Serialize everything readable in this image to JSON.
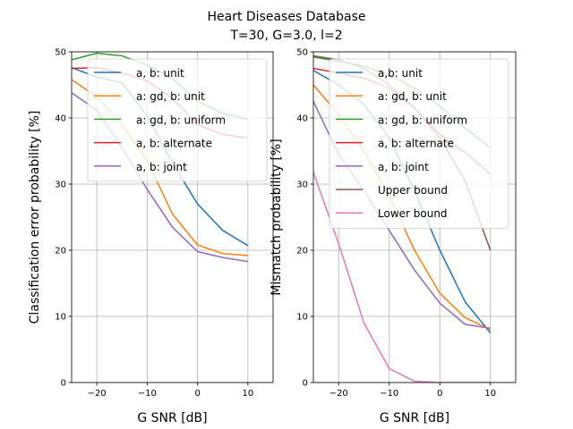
{
  "figure": {
    "suptitle_line1": "Heart Diseases Database",
    "suptitle_line2": "T=30, G=3.0, l=2"
  },
  "colors": {
    "blue": "#1f77b4",
    "orange": "#ff7f0e",
    "green": "#2ca02c",
    "red": "#d62728",
    "purple": "#9467bd",
    "brown": "#8c564b",
    "pink": "#e377c2",
    "grid": "#b0b0b0"
  },
  "chart_data": [
    {
      "type": "line",
      "xlabel": "G SNR [dB]",
      "ylabel": "Classification error probability [%]",
      "xlim": [
        -25,
        15
      ],
      "ylim": [
        0,
        50
      ],
      "xticks": [
        -20,
        -10,
        0,
        10
      ],
      "yticks": [
        0,
        10,
        20,
        30,
        40,
        50
      ],
      "xtick_labels": [
        "−20",
        "−10",
        "0",
        "10"
      ],
      "ytick_labels": [
        "0",
        "10",
        "20",
        "30",
        "40",
        "50"
      ],
      "grid": true,
      "legend_position": "top-right",
      "x": [
        -25,
        -20,
        -15,
        -10,
        -5,
        0,
        5,
        10
      ],
      "series": [
        {
          "name": "a, b: unit",
          "color": "#1f77b4",
          "values": [
            47.6,
            46.2,
            45.3,
            40.3,
            33.2,
            27.0,
            23.0,
            20.7
          ]
        },
        {
          "name": "a: gd, b: unit",
          "color": "#ff7f0e",
          "values": [
            45.8,
            43.2,
            39.0,
            33.5,
            25.5,
            20.8,
            19.5,
            19.2
          ]
        },
        {
          "name": "a: gd, b: uniform",
          "color": "#2ca02c",
          "values": [
            48.8,
            49.8,
            49.4,
            48.0,
            46.0,
            42.5,
            40.7,
            39.8
          ]
        },
        {
          "name": "a, b: alternate",
          "color": "#d62728",
          "values": [
            47.5,
            47.6,
            46.8,
            45.6,
            43.0,
            39.0,
            37.5,
            37.0
          ]
        },
        {
          "name": "a, b: joint",
          "color": "#9467bd",
          "values": [
            43.8,
            41.2,
            35.5,
            29.2,
            23.5,
            19.8,
            18.9,
            18.3
          ]
        }
      ]
    },
    {
      "type": "line",
      "xlabel": "G SNR [dB]",
      "ylabel": "Mismatch probability [%]",
      "xlim": [
        -25,
        15
      ],
      "ylim": [
        0,
        50
      ],
      "xticks": [
        -20,
        -10,
        0,
        10
      ],
      "yticks": [
        0,
        10,
        20,
        30,
        40,
        50
      ],
      "xtick_labels": [
        "−20",
        "−10",
        "0",
        "10"
      ],
      "ytick_labels": [
        "0",
        "10",
        "20",
        "30",
        "40",
        "50"
      ],
      "grid": true,
      "legend_position": "top-right",
      "x": [
        -25,
        -20,
        -15,
        -10,
        -5,
        0,
        5,
        10
      ],
      "series": [
        {
          "name": "a,b: unit",
          "color": "#1f77b4",
          "values": [
            47.2,
            45.0,
            42.0,
            37.0,
            29.0,
            20.0,
            12.2,
            7.5
          ]
        },
        {
          "name": "a: gd, b: unit",
          "color": "#ff7f0e",
          "values": [
            45.0,
            40.5,
            35.0,
            28.2,
            20.0,
            13.5,
            9.8,
            8.0
          ]
        },
        {
          "name": "a: gd, b: uniform",
          "color": "#2ca02c",
          "values": [
            49.2,
            48.6,
            47.8,
            46.5,
            44.5,
            41.8,
            38.5,
            35.5
          ]
        },
        {
          "name": "a, b: alternate",
          "color": "#d62728",
          "values": [
            47.5,
            46.8,
            46.0,
            44.5,
            41.5,
            37.5,
            34.8,
            31.5
          ]
        },
        {
          "name": "a, b: joint",
          "color": "#9467bd",
          "values": [
            42.5,
            34.5,
            29.0,
            23.0,
            17.0,
            12.0,
            8.8,
            8.2
          ]
        },
        {
          "name": "Upper bound",
          "color": "#8c564b",
          "values": [
            49.4,
            48.8,
            47.5,
            45.0,
            41.5,
            37.0,
            30.5,
            20.0
          ]
        },
        {
          "name": "Lower bound",
          "color": "#e377c2",
          "values": [
            31.8,
            21.0,
            9.0,
            2.1,
            0.2,
            0.0,
            0.0,
            0.0
          ]
        }
      ]
    }
  ]
}
